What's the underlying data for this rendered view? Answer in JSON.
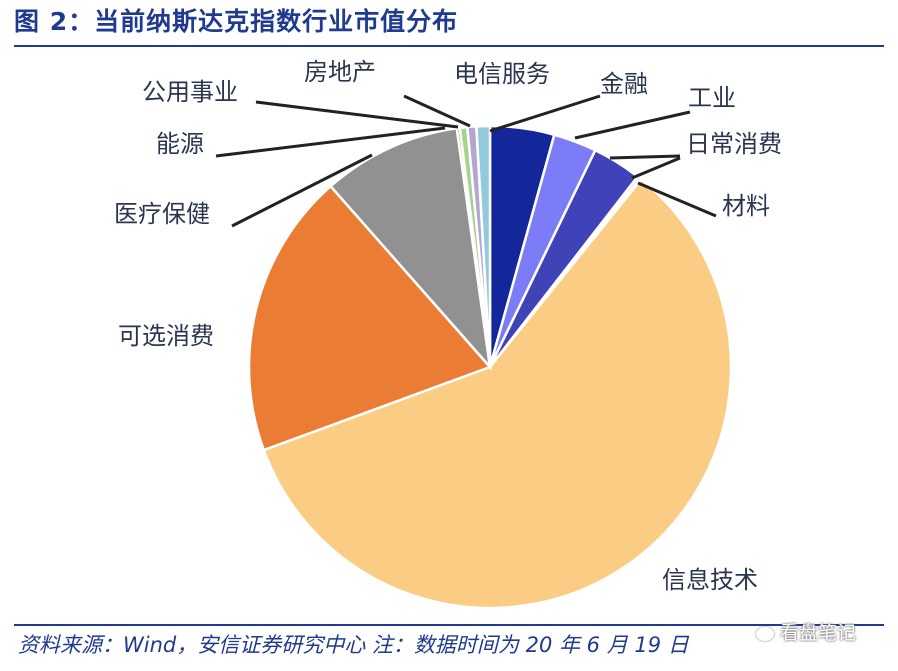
{
  "title": "图 2：当前纳斯达克指数行业市值分布",
  "source_note": "资料来源：Wind，安信证券研究中心   注：数据时间为 20 年 6 月 19 日",
  "watermark": "看盘笔记",
  "chart_data": {
    "type": "pie",
    "title": "图 2：当前纳斯达克指数行业市值分布",
    "start_angle_deg": 0,
    "direction": "clockwise",
    "slices": [
      {
        "label": "电信服务",
        "value": 4.3,
        "color": "#13279a"
      },
      {
        "label": "金融",
        "value": 2.9,
        "color": "#7b7cf6"
      },
      {
        "label": "工业",
        "value": 3.3,
        "color": "#4043b8"
      },
      {
        "label": "日常消费",
        "value": 0.2,
        "color": "#f4a8a0"
      },
      {
        "label": "材料",
        "value": 0.1,
        "color": "#e4d2a2"
      },
      {
        "label": "信息技术",
        "value": 58.6,
        "color": "#fbcd84"
      },
      {
        "label": "可选消费",
        "value": 19.1,
        "color": "#ea7c34"
      },
      {
        "label": "医疗保健",
        "value": 9.3,
        "color": "#919191"
      },
      {
        "label": "能源",
        "value": 0.2,
        "color": "#5a9d3b"
      },
      {
        "label": "公用事业",
        "value": 0.5,
        "color": "#a8d28d"
      },
      {
        "label": "房地产",
        "value": 0.6,
        "color": "#b5a5d1"
      },
      {
        "label": "电信服务",
        "value": 0.9,
        "color": "#92c9dc"
      }
    ],
    "legend": "none"
  }
}
